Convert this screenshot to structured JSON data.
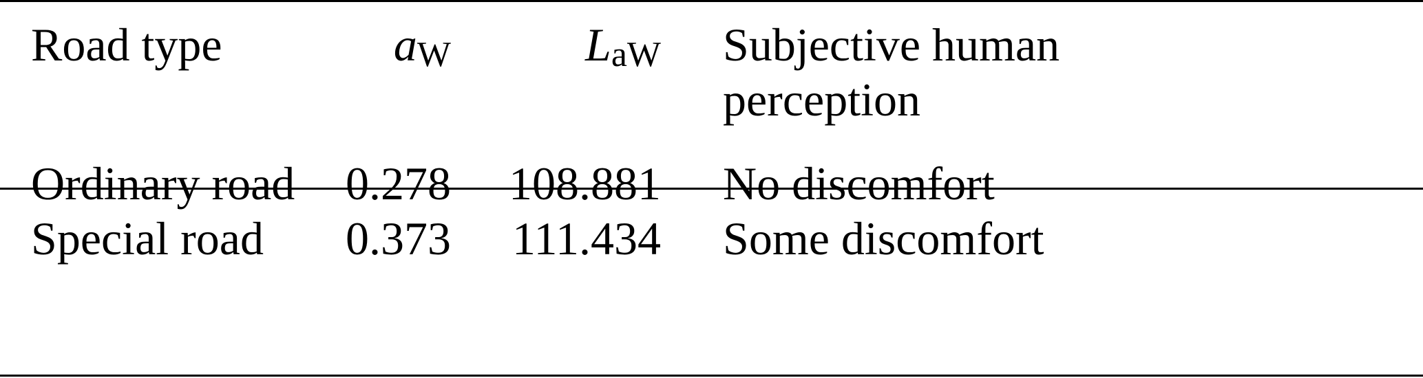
{
  "table": {
    "headers": {
      "road_type": "Road type",
      "aw": {
        "symbol": "a",
        "subscript": "W"
      },
      "law": {
        "symbol": "L",
        "subscript": "aW"
      },
      "perception": {
        "line1": "Subjective human",
        "line2": "perception"
      }
    },
    "rows": [
      {
        "road_type": "Ordinary road",
        "aw": "0.278",
        "law": "108.881",
        "perception": "No discomfort"
      },
      {
        "road_type": "Special road",
        "aw": "0.373",
        "law": "111.434",
        "perception": "Some discomfort"
      }
    ]
  }
}
